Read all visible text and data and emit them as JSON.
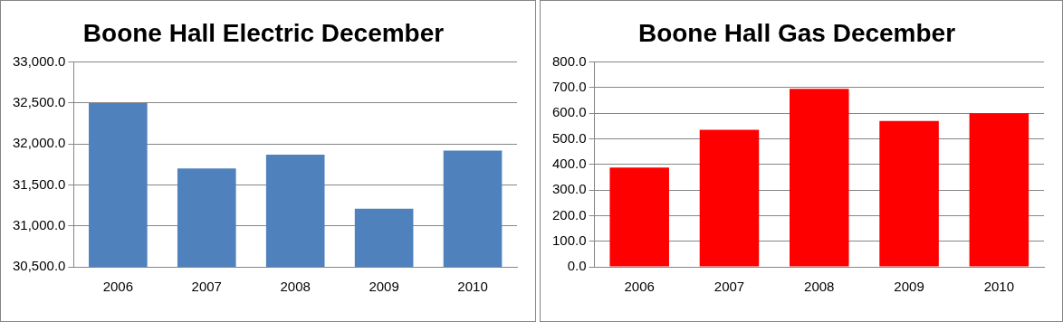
{
  "chart_data": [
    {
      "type": "bar",
      "title": "Boone Hall Electric December",
      "categories": [
        "2006",
        "2007",
        "2008",
        "2009",
        "2010"
      ],
      "values": [
        32500,
        31700,
        31870,
        31210,
        31920
      ],
      "color": "#4f81bd",
      "ylim": [
        30500,
        33000
      ],
      "yticks": [
        {
          "value": 30500,
          "label": "30,500.0"
        },
        {
          "value": 31000,
          "label": "31,000.0"
        },
        {
          "value": 31500,
          "label": "31,500.0"
        },
        {
          "value": 32000,
          "label": "32,000.0"
        },
        {
          "value": 32500,
          "label": "32,500.0"
        },
        {
          "value": 33000,
          "label": "33,000.0"
        }
      ],
      "grid": "y",
      "legend": false
    },
    {
      "type": "bar",
      "title": "Boone Hall Gas December",
      "categories": [
        "2006",
        "2007",
        "2008",
        "2009",
        "2010"
      ],
      "values": [
        388,
        535,
        695,
        570,
        600
      ],
      "color": "#ff0000",
      "ylim": [
        0,
        800
      ],
      "yticks": [
        {
          "value": 0,
          "label": "0.0"
        },
        {
          "value": 100,
          "label": "100.0"
        },
        {
          "value": 200,
          "label": "200.0"
        },
        {
          "value": 300,
          "label": "300.0"
        },
        {
          "value": 400,
          "label": "400.0"
        },
        {
          "value": 500,
          "label": "500.0"
        },
        {
          "value": 600,
          "label": "600.0"
        },
        {
          "value": 700,
          "label": "700.0"
        },
        {
          "value": 800,
          "label": "800.0"
        }
      ],
      "grid": "y",
      "legend": false
    }
  ]
}
